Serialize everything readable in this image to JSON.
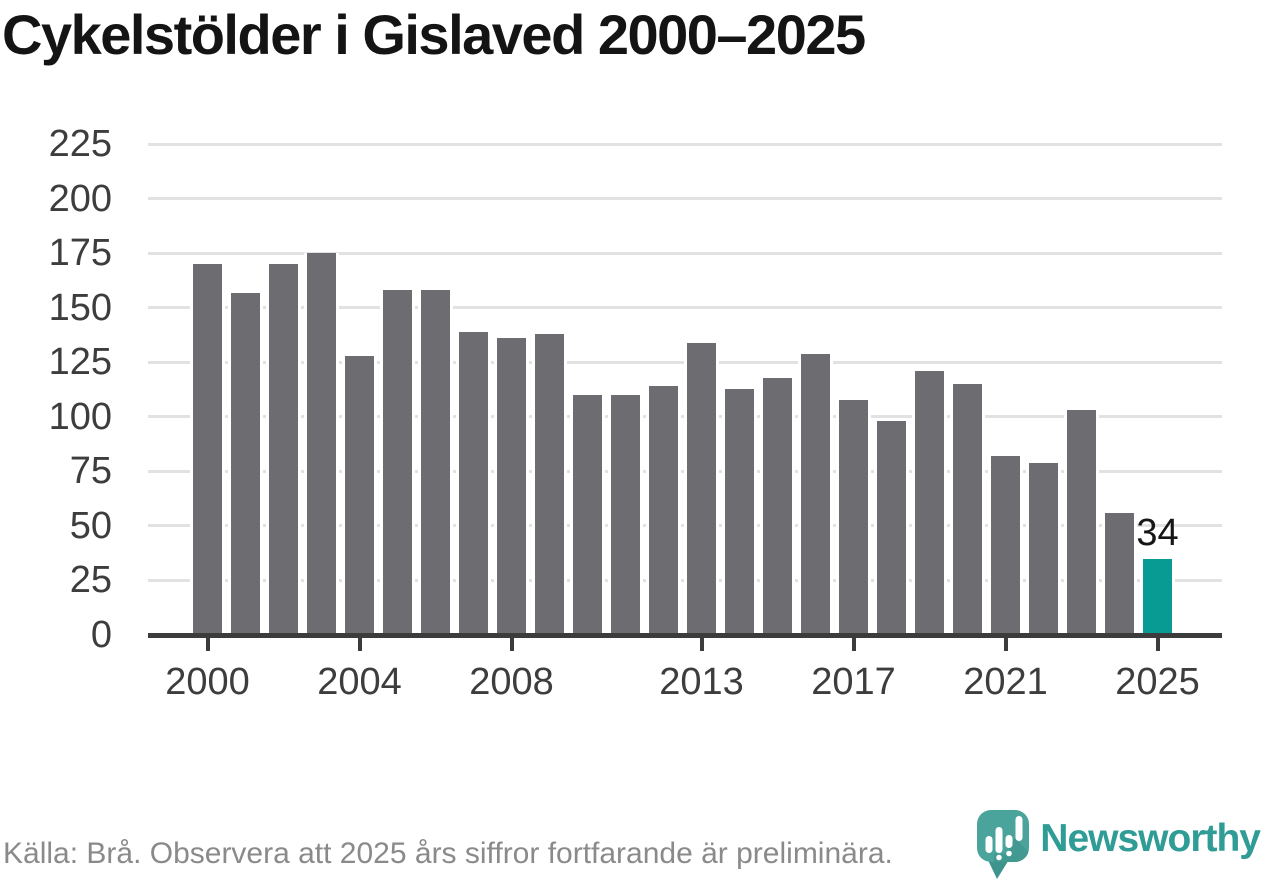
{
  "header": {
    "title": "Cykelstölder i Gislaved 2000–2025"
  },
  "chart_data": {
    "type": "bar",
    "title": "Cykelstölder i Gislaved 2000–2025",
    "categories": [
      2000,
      2001,
      2002,
      2003,
      2004,
      2005,
      2006,
      2007,
      2008,
      2009,
      2010,
      2011,
      2012,
      2013,
      2014,
      2015,
      2016,
      2017,
      2018,
      2019,
      2020,
      2021,
      2022,
      2023,
      2024,
      2025
    ],
    "values": [
      169,
      156,
      169,
      174,
      127,
      157,
      157,
      138,
      135,
      137,
      109,
      109,
      113,
      133,
      112,
      117,
      128,
      107,
      97,
      120,
      114,
      81,
      78,
      102,
      55,
      34
    ],
    "ylim": [
      0,
      225
    ],
    "yticks": [
      0,
      25,
      50,
      75,
      100,
      125,
      150,
      175,
      200,
      225
    ],
    "xtick_years": [
      2000,
      2004,
      2008,
      2013,
      2017,
      2021,
      2025
    ],
    "grid": true,
    "legend": null,
    "bar_color": "#6c6c71",
    "highlight_year": 2025,
    "highlight_color": "#089b93",
    "annotation": {
      "year": 2025,
      "text": "34"
    }
  },
  "footer": {
    "source_note": "Källa: Brå. Observera att 2025 års siffror fortfarande är preliminära.",
    "brand": "Newsworthy",
    "brand_color": "#2f9c95",
    "logo_icon": "newsworthy-pin-icon"
  },
  "colors": {
    "axis": "#3c3c3c",
    "gridline": "#e2e2e2",
    "tick_label": "#3d3d3d",
    "title": "#141414",
    "footer_text": "#8a8a8a",
    "logo_body": "#4ba49c",
    "logo_tail": "#3d948c"
  }
}
